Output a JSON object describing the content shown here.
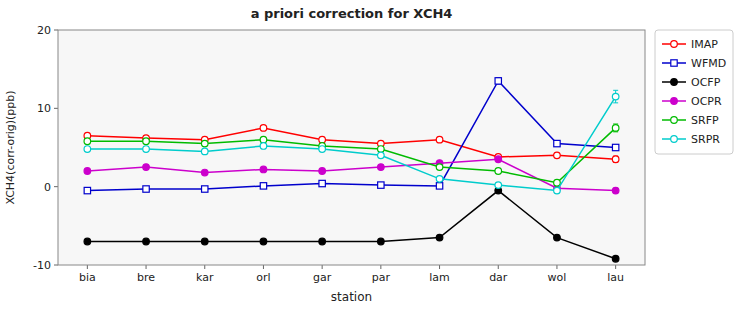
{
  "chart_data": {
    "type": "line",
    "title": "a priori correction for XCH4",
    "x_label": "station",
    "y_label": "XCH4(corr-orig)(ppb)",
    "categories": [
      "bia",
      "bre",
      "kar",
      "orl",
      "gar",
      "par",
      "lam",
      "dar",
      "wol",
      "lau"
    ],
    "ylim": [
      -10,
      20
    ],
    "yticks": [
      -10,
      0,
      10,
      20
    ],
    "grid": false,
    "legend": "right",
    "series": [
      {
        "name": "IMAP",
        "color": "#ff0000",
        "marker": "open-circle",
        "values": [
          6.5,
          6.2,
          6.0,
          7.5,
          6.0,
          5.5,
          6.0,
          3.8,
          4.0,
          3.5
        ],
        "errors": [
          0.3,
          0.3,
          0.3,
          0.3,
          0.3,
          0.3,
          0.3,
          0.3,
          0.3,
          0.4
        ]
      },
      {
        "name": "WFMD",
        "color": "#0000cc",
        "marker": "open-square",
        "values": [
          -0.5,
          -0.3,
          -0.3,
          0.1,
          0.4,
          0.2,
          0.1,
          13.5,
          5.5,
          5.0
        ],
        "errors": [
          0.2,
          0.2,
          0.2,
          0.2,
          0.2,
          0.2,
          0.2,
          0.4,
          0.2,
          0.2
        ]
      },
      {
        "name": "OCFP",
        "color": "#000000",
        "marker": "circle",
        "values": [
          -7.0,
          -7.0,
          -7.0,
          -7.0,
          -7.0,
          -7.0,
          -6.5,
          -0.5,
          -6.5,
          -9.2
        ],
        "errors": [
          0.1,
          0.1,
          0.1,
          0.1,
          0.1,
          0.1,
          0.1,
          0.1,
          0.1,
          0.2
        ]
      },
      {
        "name": "OCPR",
        "color": "#cc00cc",
        "marker": "circle",
        "values": [
          2.0,
          2.5,
          1.8,
          2.2,
          2.0,
          2.5,
          3.0,
          3.5,
          -0.2,
          -0.5
        ],
        "errors": [
          0.2,
          0.2,
          0.2,
          0.2,
          0.2,
          0.2,
          0.2,
          0.2,
          0.2,
          0.3
        ]
      },
      {
        "name": "SRFP",
        "color": "#00bb00",
        "marker": "open-circle",
        "values": [
          5.8,
          5.8,
          5.5,
          6.0,
          5.2,
          4.8,
          2.5,
          2.0,
          0.5,
          7.5
        ],
        "errors": [
          0.3,
          0.3,
          0.3,
          0.3,
          0.3,
          0.3,
          0.3,
          0.3,
          0.3,
          0.5
        ]
      },
      {
        "name": "SRPR",
        "color": "#00cccc",
        "marker": "open-circle",
        "values": [
          4.8,
          4.8,
          4.5,
          5.2,
          4.8,
          4.0,
          1.0,
          0.2,
          -0.5,
          11.5
        ],
        "errors": [
          0.3,
          0.3,
          0.3,
          0.3,
          0.3,
          0.3,
          0.3,
          0.3,
          0.3,
          0.8
        ]
      }
    ]
  }
}
